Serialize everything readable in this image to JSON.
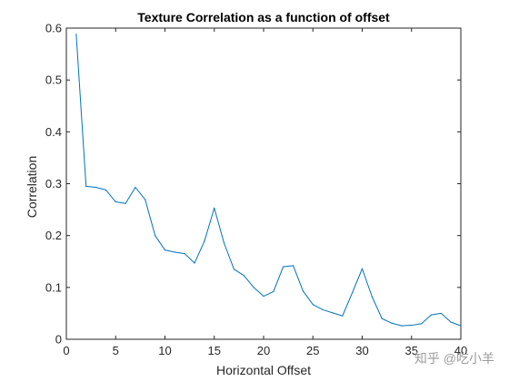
{
  "chart_data": {
    "type": "line",
    "title": "Texture Correlation as a function of offset",
    "xlabel": "Horizontal Offset",
    "ylabel": "Correlation",
    "xlim": [
      0,
      40
    ],
    "ylim": [
      0,
      0.6
    ],
    "xticks": [
      0,
      5,
      10,
      15,
      20,
      25,
      30,
      35,
      40
    ],
    "yticks": [
      0,
      0.1,
      0.2,
      0.3,
      0.4,
      0.5,
      0.6
    ],
    "xtick_labels": [
      "0",
      "5",
      "10",
      "15",
      "20",
      "25",
      "30",
      "35",
      "40"
    ],
    "ytick_labels": [
      "0",
      "0.1",
      "0.2",
      "0.3",
      "0.4",
      "0.5",
      "0.6"
    ],
    "grid": false,
    "box": true,
    "series": [
      {
        "color": "#0072BD",
        "x": [
          1,
          2,
          3,
          4,
          5,
          6,
          7,
          8,
          9,
          10,
          11,
          12,
          13,
          14,
          15,
          16,
          17,
          18,
          19,
          20,
          21,
          22,
          23,
          24,
          25,
          26,
          27,
          28,
          29,
          30,
          31,
          32,
          33,
          34,
          35,
          36,
          37,
          38,
          39,
          40
        ],
        "values": [
          0.588,
          0.295,
          0.293,
          0.288,
          0.265,
          0.262,
          0.293,
          0.269,
          0.2,
          0.172,
          0.168,
          0.165,
          0.147,
          0.189,
          0.253,
          0.185,
          0.135,
          0.123,
          0.1,
          0.083,
          0.092,
          0.14,
          0.142,
          0.093,
          0.067,
          0.057,
          0.051,
          0.045,
          0.09,
          0.136,
          0.082,
          0.04,
          0.031,
          0.026,
          0.027,
          0.03,
          0.047,
          0.05,
          0.033,
          0.026
        ]
      }
    ]
  },
  "watermark": {
    "text": "知乎 @吃小羊"
  }
}
